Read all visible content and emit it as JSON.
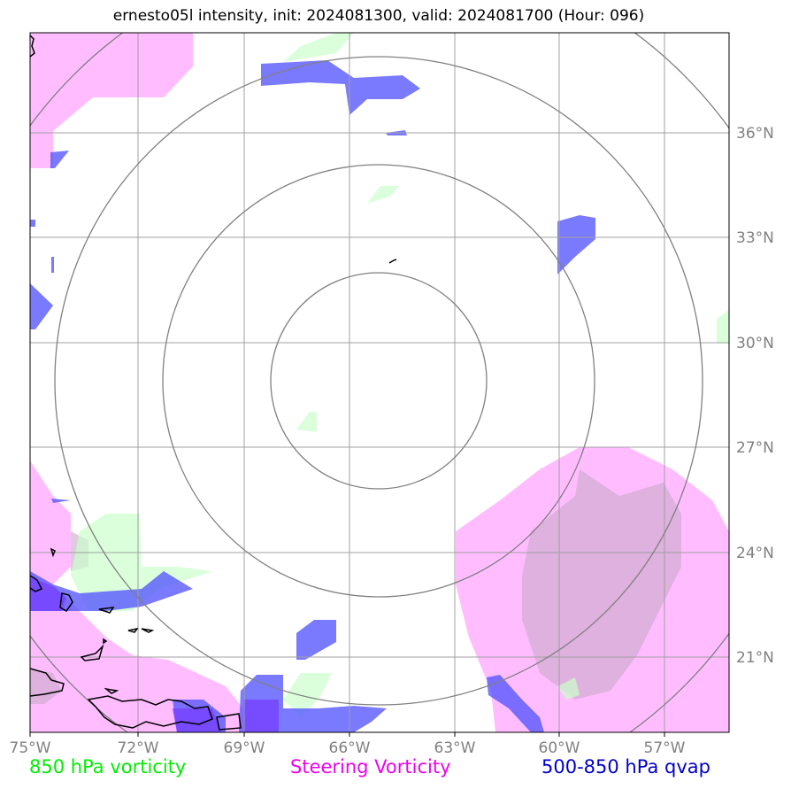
{
  "title": "ernesto05l intensity, init: 2024081300, valid: 2024081700 (Hour: 096)",
  "map": {
    "lon_labels": [
      "75°W",
      "72°W",
      "69°W",
      "66°W",
      "63°W",
      "60°W",
      "57°W"
    ],
    "lat_labels": [
      "36°N",
      "33°N",
      "30°N",
      "27°N",
      "24°N",
      "21°N"
    ],
    "lon_range": [
      -75,
      -55
    ],
    "lat_range": [
      19,
      39
    ],
    "range_rings": 4,
    "colors": {
      "frame": "#000000",
      "grid": "#a0a0a0",
      "rings": "#808080",
      "vorticity_850": "#ccffcc",
      "steering_vorticity": "#ff99ff",
      "qvap": "#3333ff"
    }
  },
  "legend": [
    {
      "label": "850 hPa vorticity",
      "color": "#00ee00"
    },
    {
      "label": "Steering Vorticity",
      "color": "#ee00ee"
    },
    {
      "label": "500-850 hPa qvap",
      "color": "#0000cc"
    }
  ]
}
